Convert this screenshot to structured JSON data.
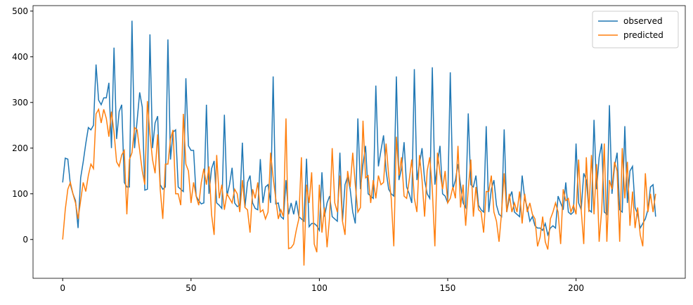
{
  "chart_data": {
    "type": "line",
    "x": [
      0,
      1,
      2,
      3,
      4,
      5,
      6,
      7,
      8,
      9,
      10,
      11,
      12,
      13,
      14,
      15,
      16,
      17,
      18,
      19,
      20,
      21,
      22,
      23,
      24,
      25,
      26,
      27,
      28,
      29,
      30,
      31,
      32,
      33,
      34,
      35,
      36,
      37,
      38,
      39,
      40,
      41,
      42,
      43,
      44,
      45,
      46,
      47,
      48,
      49,
      50,
      51,
      52,
      53,
      54,
      55,
      56,
      57,
      58,
      59,
      60,
      61,
      62,
      63,
      64,
      65,
      66,
      67,
      68,
      69,
      70,
      71,
      72,
      73,
      74,
      75,
      76,
      77,
      78,
      79,
      80,
      81,
      82,
      83,
      84,
      85,
      86,
      87,
      88,
      89,
      90,
      91,
      92,
      93,
      94,
      95,
      96,
      97,
      98,
      99,
      100,
      101,
      102,
      103,
      104,
      105,
      106,
      107,
      108,
      109,
      110,
      111,
      112,
      113,
      114,
      115,
      116,
      117,
      118,
      119,
      120,
      121,
      122,
      123,
      124,
      125,
      126,
      127,
      128,
      129,
      130,
      131,
      132,
      133,
      134,
      135,
      136,
      137,
      138,
      139,
      140,
      141,
      142,
      143,
      144,
      145,
      146,
      147,
      148,
      149,
      150,
      151,
      152,
      153,
      154,
      155,
      156,
      157,
      158,
      159,
      160,
      161,
      162,
      163,
      164,
      165,
      166,
      167,
      168,
      169,
      170,
      171,
      172,
      173,
      174,
      175,
      176,
      177,
      178,
      179,
      180,
      181,
      182,
      183,
      184,
      185,
      186,
      187,
      188,
      189,
      190,
      191,
      192,
      193,
      194,
      195,
      196,
      197,
      198,
      199,
      200,
      201,
      202,
      203,
      204,
      205,
      206,
      207,
      208,
      209,
      210,
      211,
      212,
      213,
      214,
      215,
      216,
      217,
      218,
      219,
      220,
      221,
      222,
      223,
      224,
      225,
      226,
      227,
      228,
      229,
      230,
      231
    ],
    "series": [
      {
        "name": "observed",
        "color": "#1f77b4",
        "values": [
          125,
          178,
          176,
          120,
          100,
          85,
          25,
          135,
          170,
          210,
          245,
          240,
          250,
          383,
          305,
          295,
          310,
          310,
          343,
          200,
          420,
          220,
          280,
          295,
          125,
          115,
          115,
          479,
          200,
          260,
          322,
          290,
          108,
          110,
          449,
          200,
          255,
          270,
          120,
          110,
          115,
          438,
          175,
          235,
          240,
          115,
          110,
          105,
          353,
          205,
          195,
          195,
          95,
          85,
          78,
          80,
          295,
          100,
          155,
          172,
          80,
          75,
          68,
          273,
          95,
          120,
          157,
          80,
          72,
          75,
          212,
          70,
          125,
          140,
          80,
          68,
          65,
          176,
          80,
          115,
          120,
          80,
          357,
          78,
          80,
          50,
          45,
          130,
          55,
          80,
          55,
          85,
          50,
          45,
          40,
          177,
          28,
          35,
          35,
          30,
          20,
          147,
          50,
          80,
          95,
          50,
          45,
          40,
          190,
          40,
          120,
          138,
          110,
          60,
          35,
          265,
          110,
          165,
          205,
          100,
          95,
          90,
          337,
          160,
          195,
          228,
          150,
          110,
          100,
          95,
          357,
          130,
          155,
          213,
          115,
          100,
          80,
          373,
          130,
          165,
          200,
          130,
          100,
          90,
          377,
          120,
          165,
          205,
          100,
          95,
          80,
          366,
          110,
          130,
          165,
          120,
          80,
          70,
          276,
          120,
          115,
          140,
          75,
          65,
          60,
          248,
          60,
          110,
          130,
          75,
          55,
          50,
          241,
          60,
          90,
          105,
          60,
          55,
          50,
          140,
          90,
          70,
          40,
          50,
          30,
          25,
          25,
          20,
          35,
          10,
          25,
          30,
          25,
          95,
          80,
          65,
          125,
          60,
          55,
          60,
          210,
          80,
          65,
          145,
          130,
          65,
          60,
          262,
          110,
          180,
          210,
          60,
          55,
          294,
          100,
          160,
          190,
          65,
          60,
          248,
          80,
          150,
          160,
          70,
          55,
          25,
          35,
          45,
          65,
          115,
          120,
          50
        ]
      },
      {
        "name": "predicted",
        "color": "#ff7f0e",
        "values": [
          0,
          65,
          110,
          125,
          100,
          80,
          45,
          85,
          125,
          105,
          140,
          165,
          155,
          275,
          285,
          255,
          285,
          265,
          225,
          280,
          235,
          170,
          160,
          185,
          195,
          55,
          175,
          190,
          245,
          240,
          195,
          150,
          120,
          303,
          230,
          175,
          145,
          230,
          110,
          45,
          165,
          165,
          220,
          240,
          100,
          100,
          75,
          275,
          165,
          150,
          80,
          125,
          95,
          75,
          125,
          155,
          120,
          160,
          55,
          10,
          185,
          90,
          120,
          65,
          100,
          90,
          80,
          110,
          100,
          60,
          130,
          70,
          65,
          15,
          110,
          90,
          125,
          60,
          65,
          45,
          60,
          190,
          135,
          90,
          45,
          65,
          50,
          265,
          -20,
          -18,
          -10,
          20,
          45,
          180,
          -57,
          120,
          80,
          147,
          -10,
          -28,
          120,
          15,
          70,
          -17,
          50,
          200,
          80,
          60,
          140,
          40,
          10,
          150,
          115,
          190,
          120,
          60,
          70,
          260,
          135,
          140,
          80,
          130,
          90,
          140,
          120,
          125,
          210,
          140,
          90,
          -15,
          225,
          140,
          180,
          95,
          90,
          130,
          175,
          90,
          60,
          185,
          130,
          50,
          150,
          180,
          110,
          -15,
          190,
          145,
          110,
          150,
          80,
          90,
          115,
          90,
          205,
          70,
          120,
          30,
          110,
          175,
          50,
          115,
          65,
          60,
          15,
          105,
          105,
          140,
          60,
          40,
          -5,
          60,
          145,
          60,
          100,
          60,
          80,
          60,
          105,
          35,
          100,
          60,
          80,
          55,
          45,
          -15,
          5,
          50,
          -5,
          -22,
          45,
          60,
          80,
          60,
          -10,
          110,
          85,
          90,
          60,
          75,
          55,
          175,
          65,
          -10,
          180,
          60,
          185,
          55,
          165,
          -5,
          65,
          210,
          -5,
          130,
          110,
          170,
          150,
          -5,
          200,
          90,
          170,
          30,
          105,
          25,
          70,
          10,
          -15,
          145,
          60,
          100,
          60,
          100
        ]
      }
    ],
    "xlim": [
      -11.55,
      242.55
    ],
    "ylim": [
      -85,
      512
    ],
    "xticks": [
      0,
      50,
      100,
      150,
      200
    ],
    "yticks": [
      0,
      100,
      200,
      300,
      400,
      500
    ],
    "legend": "upper right"
  }
}
